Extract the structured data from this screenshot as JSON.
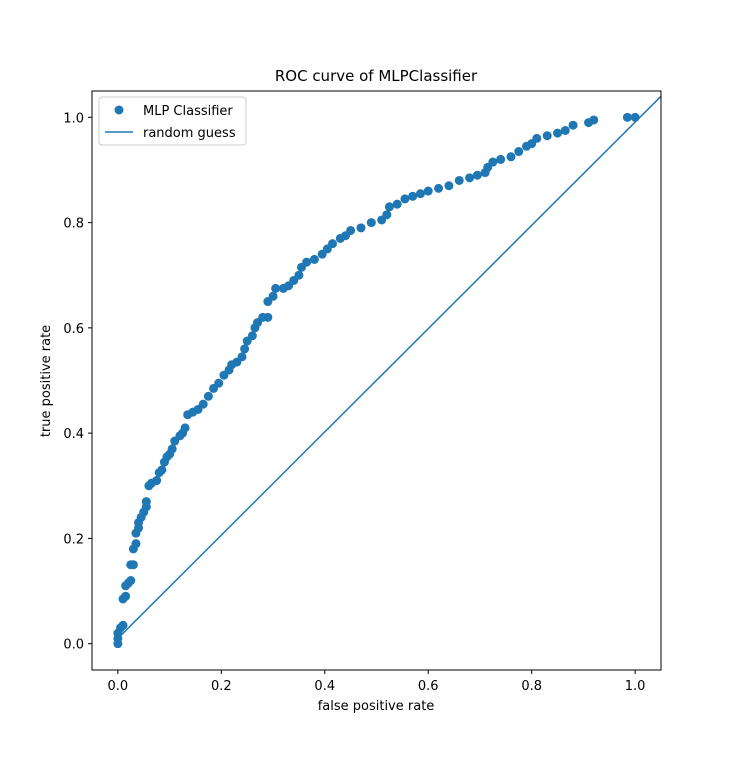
{
  "chart_data": {
    "type": "scatter",
    "title": "ROC curve of MLPClassifier",
    "x_label": "false positive rate",
    "y_label": "true positive rate",
    "xlim": [
      -0.05,
      1.05
    ],
    "ylim": [
      -0.05,
      1.05
    ],
    "xticks": [
      {
        "value": 0,
        "label": "0.0"
      },
      0.2,
      0.4,
      0.6,
      0.8,
      {
        "value": 1,
        "label": "1.0"
      }
    ],
    "yticks": [
      {
        "value": 0,
        "label": "0.0"
      },
      0.2,
      0.4,
      0.6,
      0.8,
      {
        "value": 1,
        "label": "1.0"
      }
    ],
    "legend": "upper left",
    "series": [
      {
        "name": "MLP Classifier",
        "type": "scatter",
        "color": "#1f77b4",
        "x": [
          0,
          0,
          0,
          0.005,
          0.01,
          0.01,
          0.015,
          0.015,
          0.02,
          0.025,
          0.025,
          0.03,
          0.03,
          0.035,
          0.035,
          0.04,
          0.04,
          0.045,
          0.05,
          0.055,
          0.055,
          0.06,
          0.065,
          0.075,
          0.08,
          0.085,
          0.09,
          0.095,
          0.1,
          0.105,
          0.11,
          0.12,
          0.125,
          0.13,
          0.135,
          0.145,
          0.155,
          0.165,
          0.175,
          0.185,
          0.195,
          0.205,
          0.215,
          0.22,
          0.23,
          0.24,
          0.245,
          0.25,
          0.26,
          0.265,
          0.27,
          0.28,
          0.29,
          0.29,
          0.3,
          0.305,
          0.32,
          0.33,
          0.34,
          0.35,
          0.355,
          0.365,
          0.38,
          0.395,
          0.405,
          0.415,
          0.43,
          0.44,
          0.45,
          0.47,
          0.49,
          0.51,
          0.52,
          0.525,
          0.54,
          0.555,
          0.57,
          0.585,
          0.6,
          0.62,
          0.64,
          0.66,
          0.68,
          0.695,
          0.71,
          0.715,
          0.725,
          0.74,
          0.76,
          0.775,
          0.79,
          0.8,
          0.81,
          0.83,
          0.85,
          0.865,
          0.88,
          0.91,
          0.92,
          0.985,
          1.0
        ],
        "y": [
          0,
          0.01,
          0.02,
          0.03,
          0.035,
          0.085,
          0.09,
          0.11,
          0.115,
          0.12,
          0.15,
          0.15,
          0.18,
          0.19,
          0.21,
          0.22,
          0.23,
          0.24,
          0.25,
          0.26,
          0.27,
          0.3,
          0.305,
          0.31,
          0.325,
          0.33,
          0.345,
          0.355,
          0.36,
          0.37,
          0.385,
          0.395,
          0.4,
          0.41,
          0.435,
          0.44,
          0.445,
          0.455,
          0.47,
          0.485,
          0.495,
          0.51,
          0.52,
          0.53,
          0.535,
          0.545,
          0.56,
          0.575,
          0.585,
          0.6,
          0.61,
          0.62,
          0.62,
          0.65,
          0.66,
          0.675,
          0.675,
          0.68,
          0.69,
          0.7,
          0.715,
          0.725,
          0.73,
          0.74,
          0.75,
          0.76,
          0.77,
          0.775,
          0.785,
          0.79,
          0.8,
          0.805,
          0.815,
          0.83,
          0.835,
          0.845,
          0.85,
          0.855,
          0.86,
          0.865,
          0.87,
          0.88,
          0.885,
          0.89,
          0.895,
          0.905,
          0.915,
          0.92,
          0.925,
          0.935,
          0.945,
          0.95,
          0.96,
          0.965,
          0.97,
          0.975,
          0.985,
          0.99,
          0.995,
          1.0,
          1.0
        ]
      },
      {
        "name": "random guess",
        "type": "line",
        "color": "#1f77b4",
        "x": [
          0,
          1.05
        ],
        "y": [
          0.01,
          1.04
        ]
      }
    ]
  }
}
